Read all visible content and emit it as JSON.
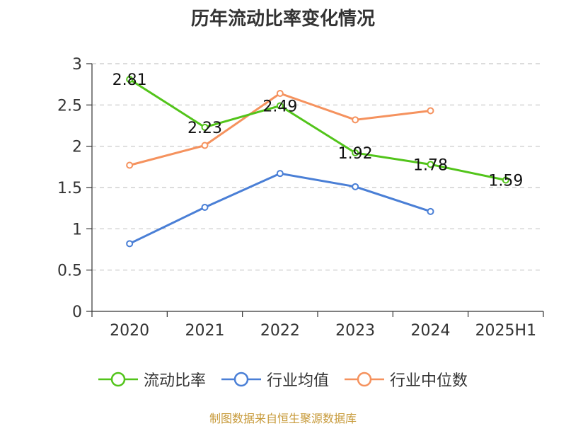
{
  "chart_data": {
    "type": "line",
    "title": "历年流动比率变化情况",
    "categories": [
      "2020",
      "2021",
      "2022",
      "2023",
      "2024",
      "2025H1"
    ],
    "ylim": [
      0,
      3
    ],
    "yticks": [
      "0",
      "0.5",
      "1",
      "1.5",
      "2",
      "2.5",
      "3"
    ],
    "grid": true,
    "legend_position": "bottom",
    "series": [
      {
        "name": "流动比率",
        "color": "#52c41a",
        "values": [
          2.81,
          2.23,
          2.49,
          1.92,
          1.78,
          1.59
        ],
        "labels": [
          "2.81",
          "2.23",
          "2.49",
          "1.92",
          "1.78",
          "1.59"
        ]
      },
      {
        "name": "行业均值",
        "color": "#4a7fd6",
        "values": [
          0.82,
          1.26,
          1.67,
          1.51,
          1.21,
          null
        ]
      },
      {
        "name": "行业中位数",
        "color": "#f5925e",
        "values": [
          1.77,
          2.01,
          2.64,
          2.32,
          2.43,
          null
        ]
      }
    ]
  },
  "source": "制图数据来自恒生聚源数据库"
}
